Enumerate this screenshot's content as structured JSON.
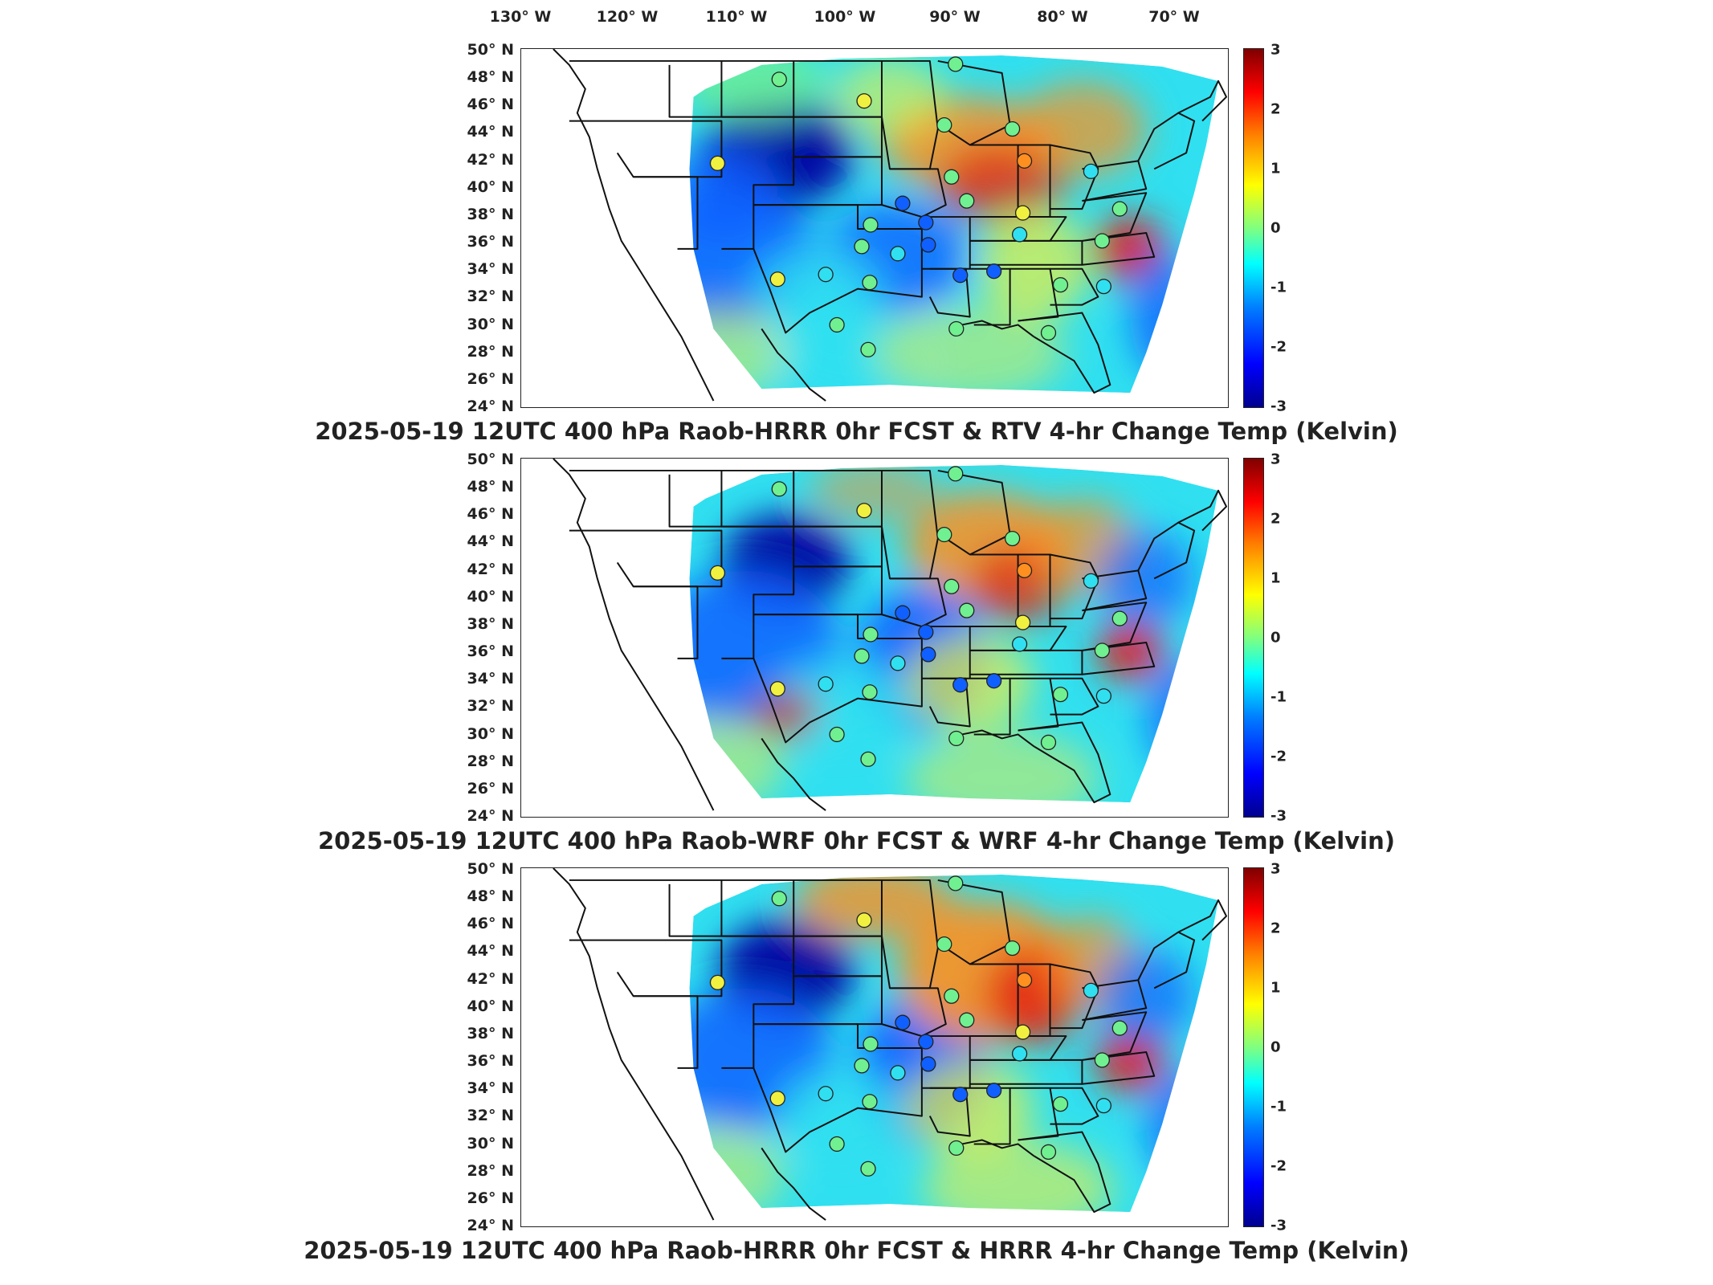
{
  "lon_labels": [
    "130° W",
    "120° W",
    "110° W",
    "100° W",
    "90° W",
    "80° W",
    "70° W"
  ],
  "lat_labels": [
    "50° N",
    "48° N",
    "46° N",
    "44° N",
    "42° N",
    "40° N",
    "38° N",
    "36° N",
    "34° N",
    "32° N",
    "30° N",
    "28° N",
    "26° N",
    "24° N"
  ],
  "colorbar": {
    "ticks": [
      "3",
      "2",
      "1",
      "0",
      "-1",
      "-2",
      "-3"
    ],
    "range": [
      -3,
      3
    ],
    "colormap": "jet"
  },
  "panels": [
    {
      "title": "2025-05-19 12UTC 400 hPa Raob-HRRR 0hr FCST & RTV 4-hr Change Temp (Kelvin)",
      "field_pattern": "rtv"
    },
    {
      "title": "2025-05-19 12UTC 400 hPa Raob-WRF 0hr FCST & WRF 4-hr Change Temp (Kelvin)",
      "field_pattern": "wrf"
    },
    {
      "title": "2025-05-19 12UTC 400 hPa Raob-HRRR 0hr FCST & HRRR 4-hr Change Temp (Kelvin)",
      "field_pattern": "hrrr"
    }
  ],
  "colors": {
    "deep_blue": "#0000a0",
    "blue": "#1060ff",
    "cyan": "#30e0f0",
    "green": "#70f090",
    "yellow": "#f0f040",
    "orange": "#ff9020",
    "red": "#e02010",
    "dark_red": "#900000",
    "border": "#111111"
  }
}
